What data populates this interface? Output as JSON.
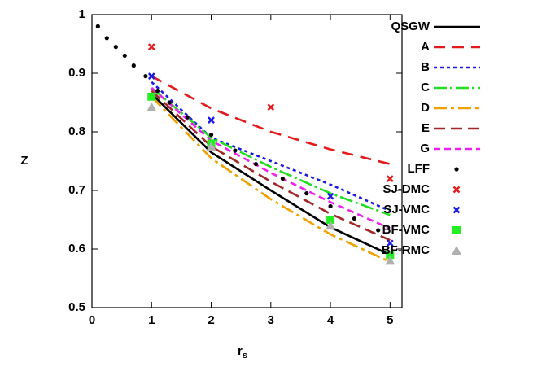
{
  "chart_data": {
    "type": "line",
    "x_label": "r",
    "x_label_sub": "s",
    "y_label": "Z",
    "xlim": [
      0,
      5.2
    ],
    "ylim": [
      0.5,
      1
    ],
    "xticks": [
      0,
      1,
      2,
      3,
      4,
      5
    ],
    "yticks": [
      0.5,
      0.6,
      0.7,
      0.8,
      0.9,
      1
    ],
    "series": [
      {
        "name": "QSGW",
        "color": "#000000",
        "style": "line",
        "dash": "none",
        "x": [
          1,
          2,
          3,
          4,
          5
        ],
        "values": [
          0.865,
          0.765,
          0.7,
          0.637,
          0.59
        ]
      },
      {
        "name": "A",
        "color": "#e41a1c",
        "style": "line",
        "dash": "14,9",
        "x": [
          1,
          2,
          3,
          4,
          5
        ],
        "values": [
          0.895,
          0.84,
          0.8,
          0.77,
          0.745
        ]
      },
      {
        "name": "B",
        "color": "#1a1ae0",
        "style": "line",
        "dash": "4,4",
        "x": [
          1,
          2,
          3,
          4,
          5
        ],
        "values": [
          0.885,
          0.79,
          0.75,
          0.71,
          0.665
        ]
      },
      {
        "name": "C",
        "color": "#22dd22",
        "style": "line",
        "dash": "16,4,3,4",
        "x": [
          1,
          2,
          3,
          4,
          5
        ],
        "values": [
          0.875,
          0.79,
          0.74,
          0.695,
          0.658
        ]
      },
      {
        "name": "D",
        "color": "#f0a000",
        "style": "line",
        "dash": "16,5,4,5",
        "x": [
          1,
          2,
          3,
          4,
          5
        ],
        "values": [
          0.86,
          0.755,
          0.685,
          0.625,
          0.578
        ]
      },
      {
        "name": "E",
        "color": "#a02828",
        "style": "line",
        "dash": "14,7",
        "x": [
          1,
          2,
          3,
          4,
          5
        ],
        "values": [
          0.87,
          0.775,
          0.715,
          0.66,
          0.615
        ]
      },
      {
        "name": "G",
        "color": "#ee22ee",
        "style": "line",
        "dash": "8,5",
        "x": [
          1,
          2,
          3,
          4,
          5
        ],
        "values": [
          0.875,
          0.785,
          0.73,
          0.68,
          0.635
        ]
      },
      {
        "name": "LFF",
        "color": "#000000",
        "style": "points",
        "marker": "circle",
        "x": [
          0.1,
          0.25,
          0.4,
          0.55,
          0.7,
          0.9,
          1.1,
          1.3,
          1.6,
          2.0,
          2.4,
          2.75,
          3.2,
          3.6,
          4.0,
          4.4,
          4.8
        ],
        "values": [
          0.98,
          0.96,
          0.945,
          0.93,
          0.913,
          0.895,
          0.87,
          0.85,
          0.825,
          0.795,
          0.768,
          0.745,
          0.72,
          0.695,
          0.673,
          0.652,
          0.632
        ]
      },
      {
        "name": "SJ-DMC",
        "color": "#e41a1c",
        "style": "points",
        "marker": "x",
        "x": [
          1,
          3,
          5
        ],
        "values": [
          0.945,
          0.842,
          0.72
        ]
      },
      {
        "name": "SJ-VMC",
        "color": "#1a1ae0",
        "style": "points",
        "marker": "x",
        "x": [
          1,
          2,
          4,
          5
        ],
        "values": [
          0.895,
          0.82,
          0.69,
          0.61
        ]
      },
      {
        "name": "BF-VMC",
        "color": "#22ee22",
        "style": "points",
        "marker": "square",
        "x": [
          1,
          2,
          4,
          5
        ],
        "values": [
          0.86,
          0.78,
          0.65,
          0.59
        ]
      },
      {
        "name": "BF-RMC",
        "color": "#b0b0b0",
        "style": "points",
        "marker": "triangle",
        "x": [
          1,
          2,
          4,
          5
        ],
        "values": [
          0.842,
          0.775,
          0.64,
          0.58
        ]
      }
    ]
  }
}
